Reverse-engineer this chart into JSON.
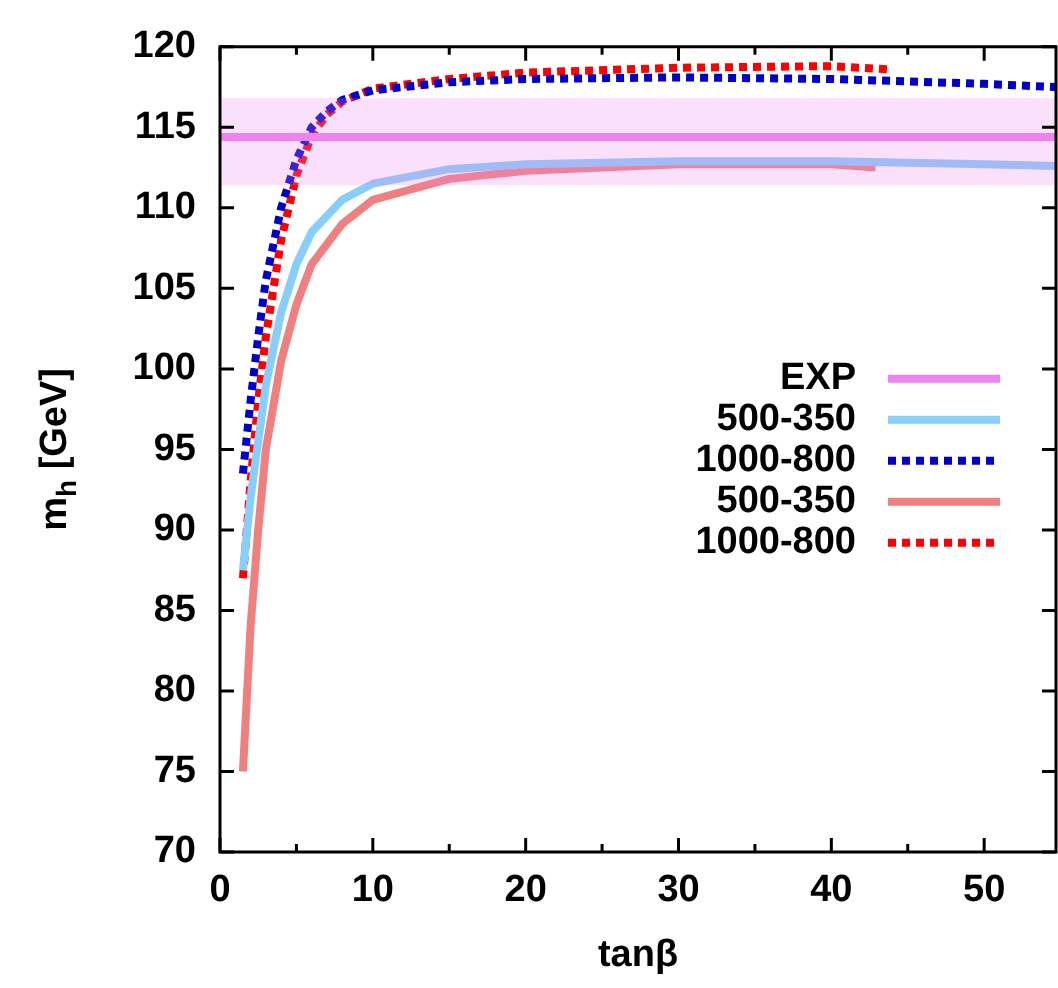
{
  "chart_data": {
    "type": "line",
    "xlabel": "tanβ",
    "ylabel": "m$_{h}$ [GeV]",
    "xlim": [
      0,
      54.7
    ],
    "ylim": [
      70,
      120
    ],
    "xticks": [
      0,
      {
        "value": 5,
        "label": null
      },
      10,
      {
        "value": 15,
        "label": null
      },
      20,
      {
        "value": 25,
        "label": null
      },
      30,
      {
        "value": 35,
        "label": null
      },
      40,
      {
        "value": 45,
        "label": null
      },
      50
    ],
    "yticks": [
      70,
      75,
      80,
      85,
      90,
      95,
      100,
      105,
      110,
      115,
      120
    ],
    "grid": false,
    "legend": "right",
    "marker": "none",
    "series": [
      {
        "name": "EXP",
        "color": "#ee82ee",
        "line_style": "solid",
        "x": [
          0,
          54.7
        ],
        "values": [
          114.4,
          114.4
        ],
        "lower": [
          111.4,
          111.4
        ],
        "upper": [
          116.8,
          116.8
        ]
      },
      {
        "name": "500-350",
        "color": "#87cefa",
        "line_style": "solid",
        "x": [
          1.5,
          2,
          3,
          4,
          5,
          6,
          8,
          10,
          15,
          20,
          30,
          40,
          50,
          54.7
        ],
        "values": [
          87.5,
          92,
          99,
          103.5,
          106.5,
          108.5,
          110.5,
          111.5,
          112.4,
          112.7,
          112.9,
          112.9,
          112.7,
          112.6
        ]
      },
      {
        "name": "1000-800",
        "color": "#0000cd",
        "line_style": "dotted",
        "x": [
          1.5,
          2,
          2.5,
          3,
          4,
          5,
          6,
          7,
          8,
          10,
          15,
          20,
          30,
          40,
          50,
          54.7
        ],
        "values": [
          93.5,
          98,
          102,
          105.5,
          110,
          113,
          115,
          116,
          116.7,
          117.3,
          117.8,
          118,
          118.1,
          118,
          117.7,
          117.5
        ]
      },
      {
        "name": "500-350",
        "color": "#f08080",
        "line_style": "solid",
        "x": [
          1.5,
          2,
          2.5,
          3,
          4,
          5,
          6,
          8,
          10,
          15,
          20,
          30,
          40,
          42.9
        ],
        "values": [
          75,
          84,
          90,
          95,
          100.5,
          104,
          106.5,
          109,
          110.5,
          111.8,
          112.3,
          112.7,
          112.7,
          112.5
        ]
      },
      {
        "name": "1000-800",
        "color": "#ff0000",
        "line_style": "dotted",
        "x": [
          1.5,
          2,
          2.5,
          3,
          4,
          5,
          6,
          7,
          8,
          10,
          15,
          20,
          30,
          40,
          43.7
        ],
        "values": [
          87,
          93,
          98,
          102,
          108,
          112,
          114.5,
          115.8,
          116.6,
          117.4,
          118,
          118.4,
          118.7,
          118.8,
          118.6
        ]
      }
    ]
  }
}
